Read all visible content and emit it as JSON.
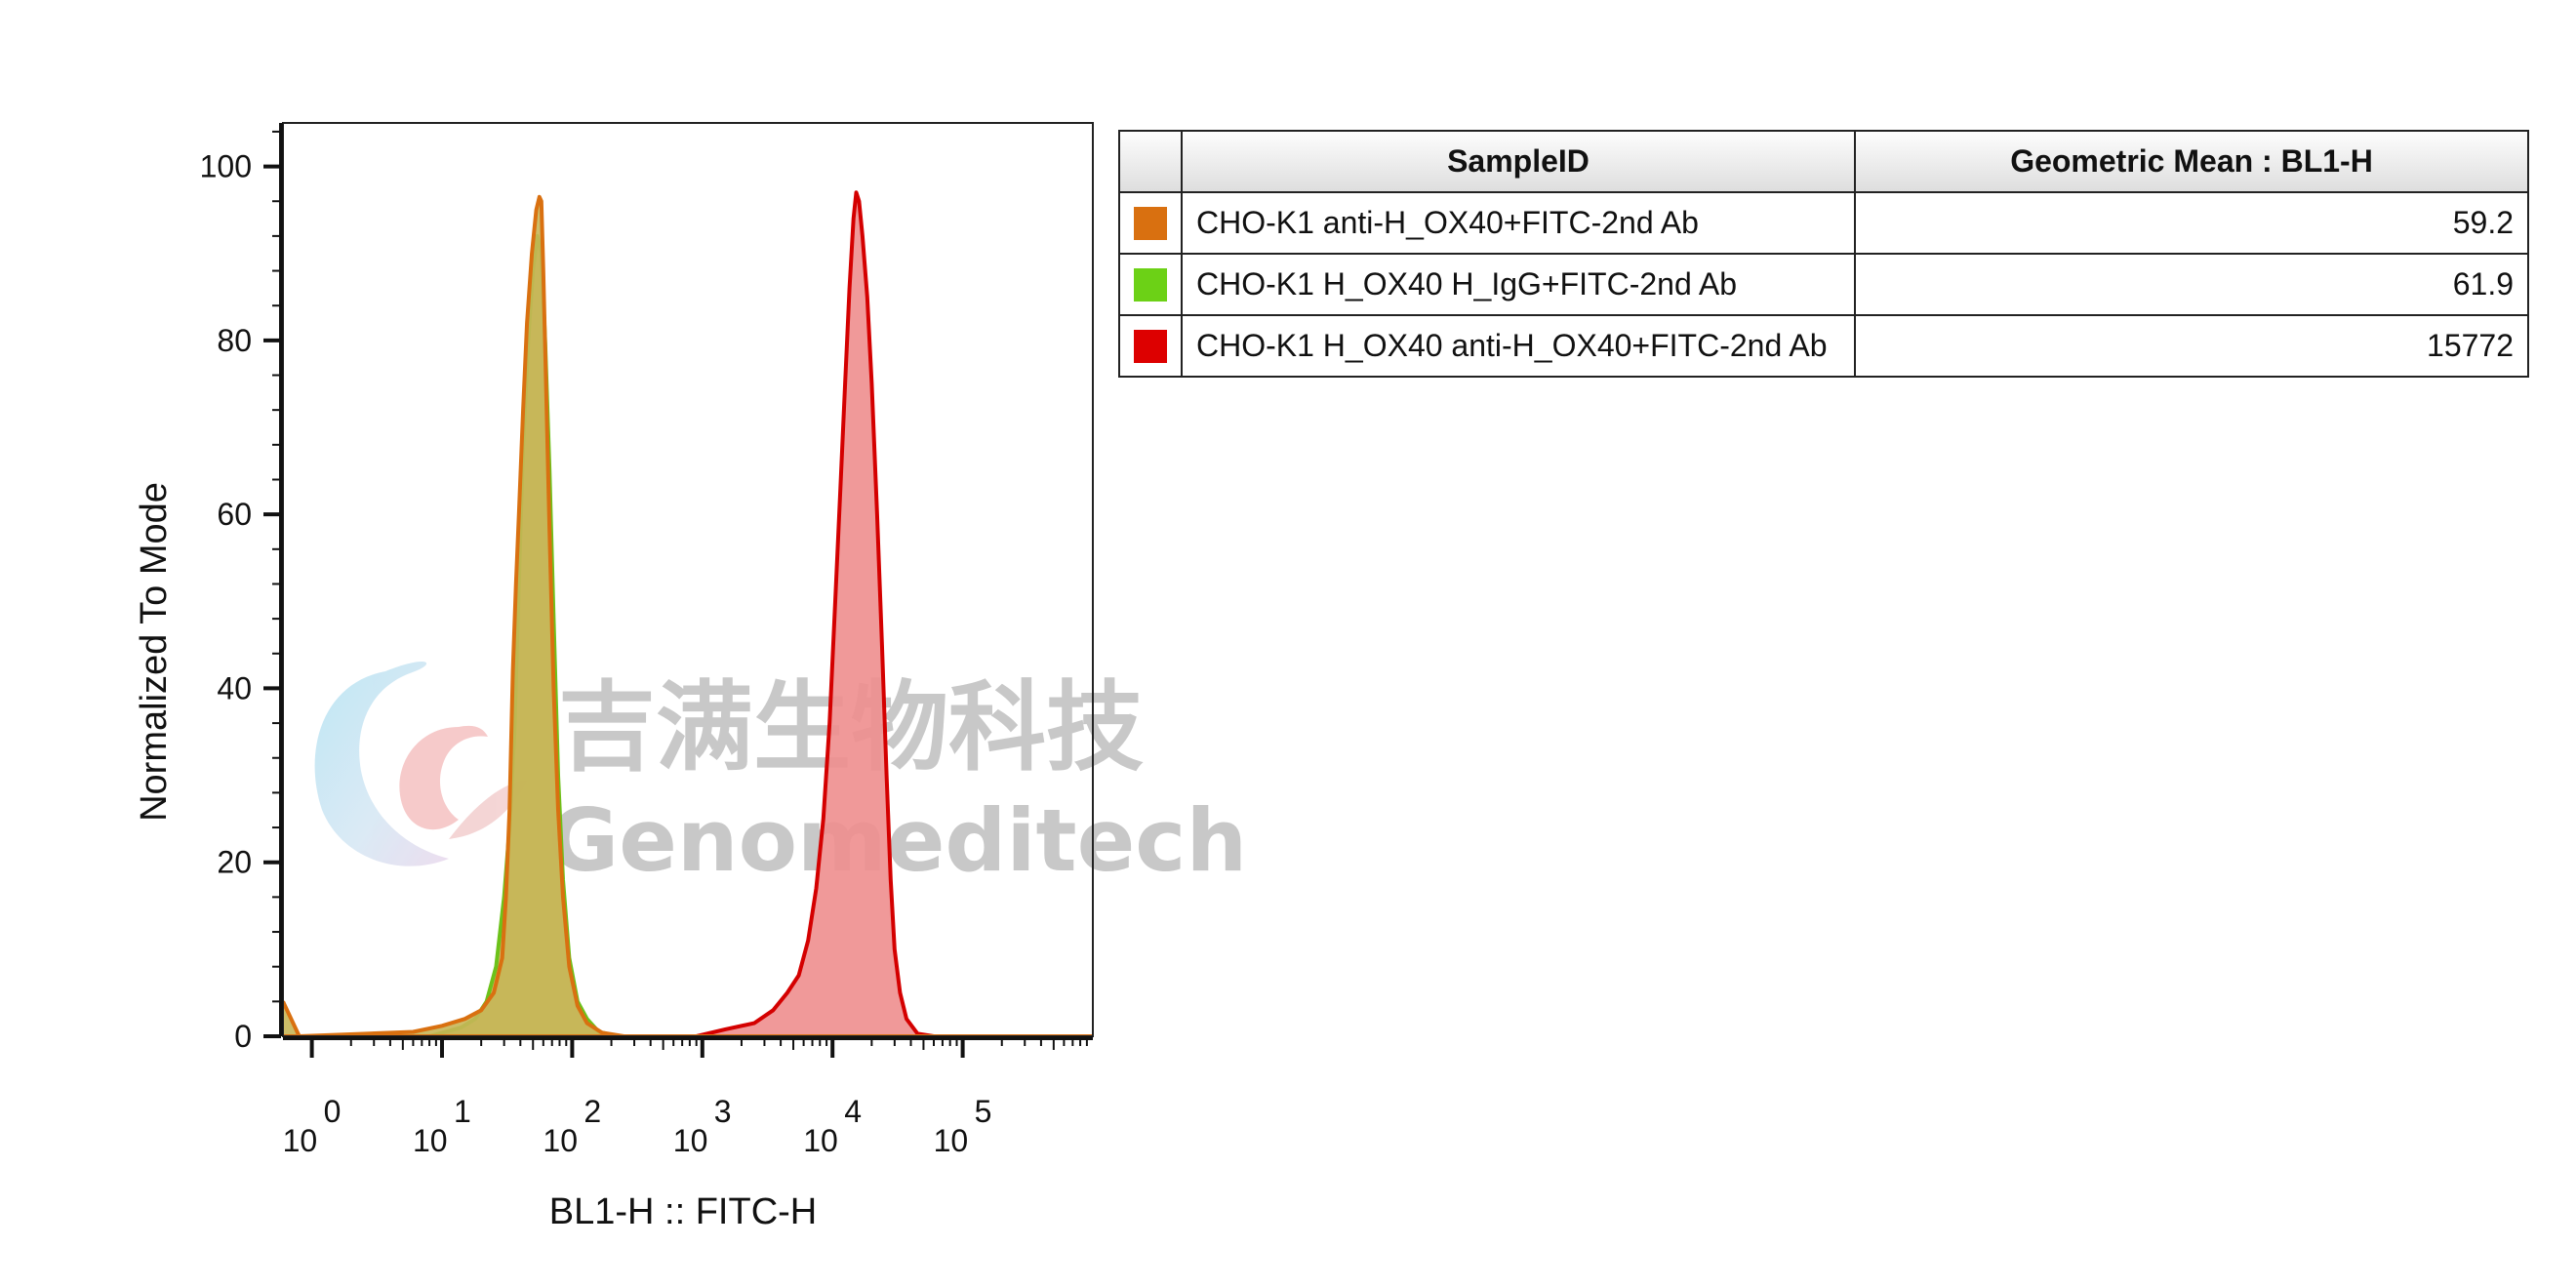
{
  "chart_data": {
    "type": "area",
    "xlabel": "BL1-H :: FITC-H",
    "ylabel": "Normalized To Mode",
    "x_scale": "log",
    "xlim": [
      0.6,
      1000000
    ],
    "ylim": [
      0,
      105
    ],
    "y_ticks": [
      0,
      20,
      40,
      60,
      80,
      100
    ],
    "x_ticks": [
      {
        "base": "10",
        "exp": "0",
        "value": 1
      },
      {
        "base": "10",
        "exp": "1",
        "value": 10
      },
      {
        "base": "10",
        "exp": "2",
        "value": 100
      },
      {
        "base": "10",
        "exp": "3",
        "value": 1000
      },
      {
        "base": "10",
        "exp": "4",
        "value": 10000
      },
      {
        "base": "10",
        "exp": "5",
        "value": 100000
      }
    ],
    "series": [
      {
        "name": "CHO-K1 H_OX40 anti-H_OX40+FITC-2nd Ab",
        "stroke": "#d40000",
        "fill": "#ee8e8e",
        "points": [
          [
            900,
            0
          ],
          [
            1500,
            0.8
          ],
          [
            2500,
            1.5
          ],
          [
            3500,
            3
          ],
          [
            4500,
            5
          ],
          [
            5500,
            7
          ],
          [
            6500,
            11
          ],
          [
            7500,
            17
          ],
          [
            8500,
            25
          ],
          [
            9500,
            36
          ],
          [
            10500,
            50
          ],
          [
            11500,
            63
          ],
          [
            12500,
            75
          ],
          [
            13500,
            86
          ],
          [
            14500,
            94
          ],
          [
            15200,
            97
          ],
          [
            16000,
            96
          ],
          [
            17000,
            92
          ],
          [
            18500,
            85
          ],
          [
            20000,
            75
          ],
          [
            22000,
            60
          ],
          [
            24000,
            45
          ],
          [
            26000,
            30
          ],
          [
            28000,
            18
          ],
          [
            30000,
            10
          ],
          [
            33000,
            5
          ],
          [
            37000,
            2
          ],
          [
            45000,
            0.3
          ],
          [
            60000,
            0
          ]
        ]
      },
      {
        "name": "CHO-K1 H_OX40 H_IgG+FITC-2nd Ab",
        "stroke": "#6cc21a",
        "fill": "#c9b55a",
        "points": [
          [
            8,
            0
          ],
          [
            14,
            1
          ],
          [
            18,
            2
          ],
          [
            22,
            4
          ],
          [
            26,
            8
          ],
          [
            30,
            16
          ],
          [
            33,
            24
          ],
          [
            36,
            35
          ],
          [
            39,
            52
          ],
          [
            42,
            68
          ],
          [
            46,
            80
          ],
          [
            50,
            88
          ],
          [
            54,
            92
          ],
          [
            58,
            90
          ],
          [
            62,
            80
          ],
          [
            67,
            65
          ],
          [
            72,
            48
          ],
          [
            78,
            30
          ],
          [
            85,
            18
          ],
          [
            95,
            9
          ],
          [
            110,
            4
          ],
          [
            130,
            2
          ],
          [
            160,
            0.5
          ],
          [
            220,
            0
          ]
        ]
      },
      {
        "name": "CHO-K1 anti-H_OX40+FITC-2nd Ab",
        "stroke": "#d97010",
        "fill": "#c7b658",
        "points": [
          [
            0.6,
            4
          ],
          [
            0.8,
            0
          ],
          [
            6,
            0.5
          ],
          [
            10,
            1.2
          ],
          [
            15,
            2
          ],
          [
            20,
            3
          ],
          [
            25,
            5
          ],
          [
            29,
            9
          ],
          [
            31,
            16
          ],
          [
            33,
            26
          ],
          [
            35,
            42
          ],
          [
            37,
            52
          ],
          [
            39,
            60
          ],
          [
            42,
            72
          ],
          [
            45,
            82
          ],
          [
            49,
            90
          ],
          [
            53,
            95
          ],
          [
            56,
            96.5
          ],
          [
            58,
            96
          ],
          [
            60,
            88
          ],
          [
            63,
            75
          ],
          [
            67,
            58
          ],
          [
            72,
            40
          ],
          [
            78,
            26
          ],
          [
            85,
            16
          ],
          [
            95,
            8
          ],
          [
            110,
            3.5
          ],
          [
            130,
            1.5
          ],
          [
            170,
            0.4
          ],
          [
            250,
            0
          ]
        ]
      }
    ]
  },
  "legend_table": {
    "headers": [
      "SampleID",
      "Geometric Mean : BL1-H"
    ],
    "rows": [
      {
        "color": "#d97010",
        "sample": "CHO-K1 anti-H_OX40+FITC-2nd Ab",
        "value": "59.2"
      },
      {
        "color": "#6cd116",
        "sample": "CHO-K1 H_OX40 H_IgG+FITC-2nd Ab",
        "value": "61.9"
      },
      {
        "color": "#dd0000",
        "sample": "CHO-K1 H_OX40 anti-H_OX40+FITC-2nd Ab",
        "value": "15772"
      }
    ]
  },
  "watermark": {
    "cn": "吉满生物科技",
    "en": "Genomeditech"
  }
}
